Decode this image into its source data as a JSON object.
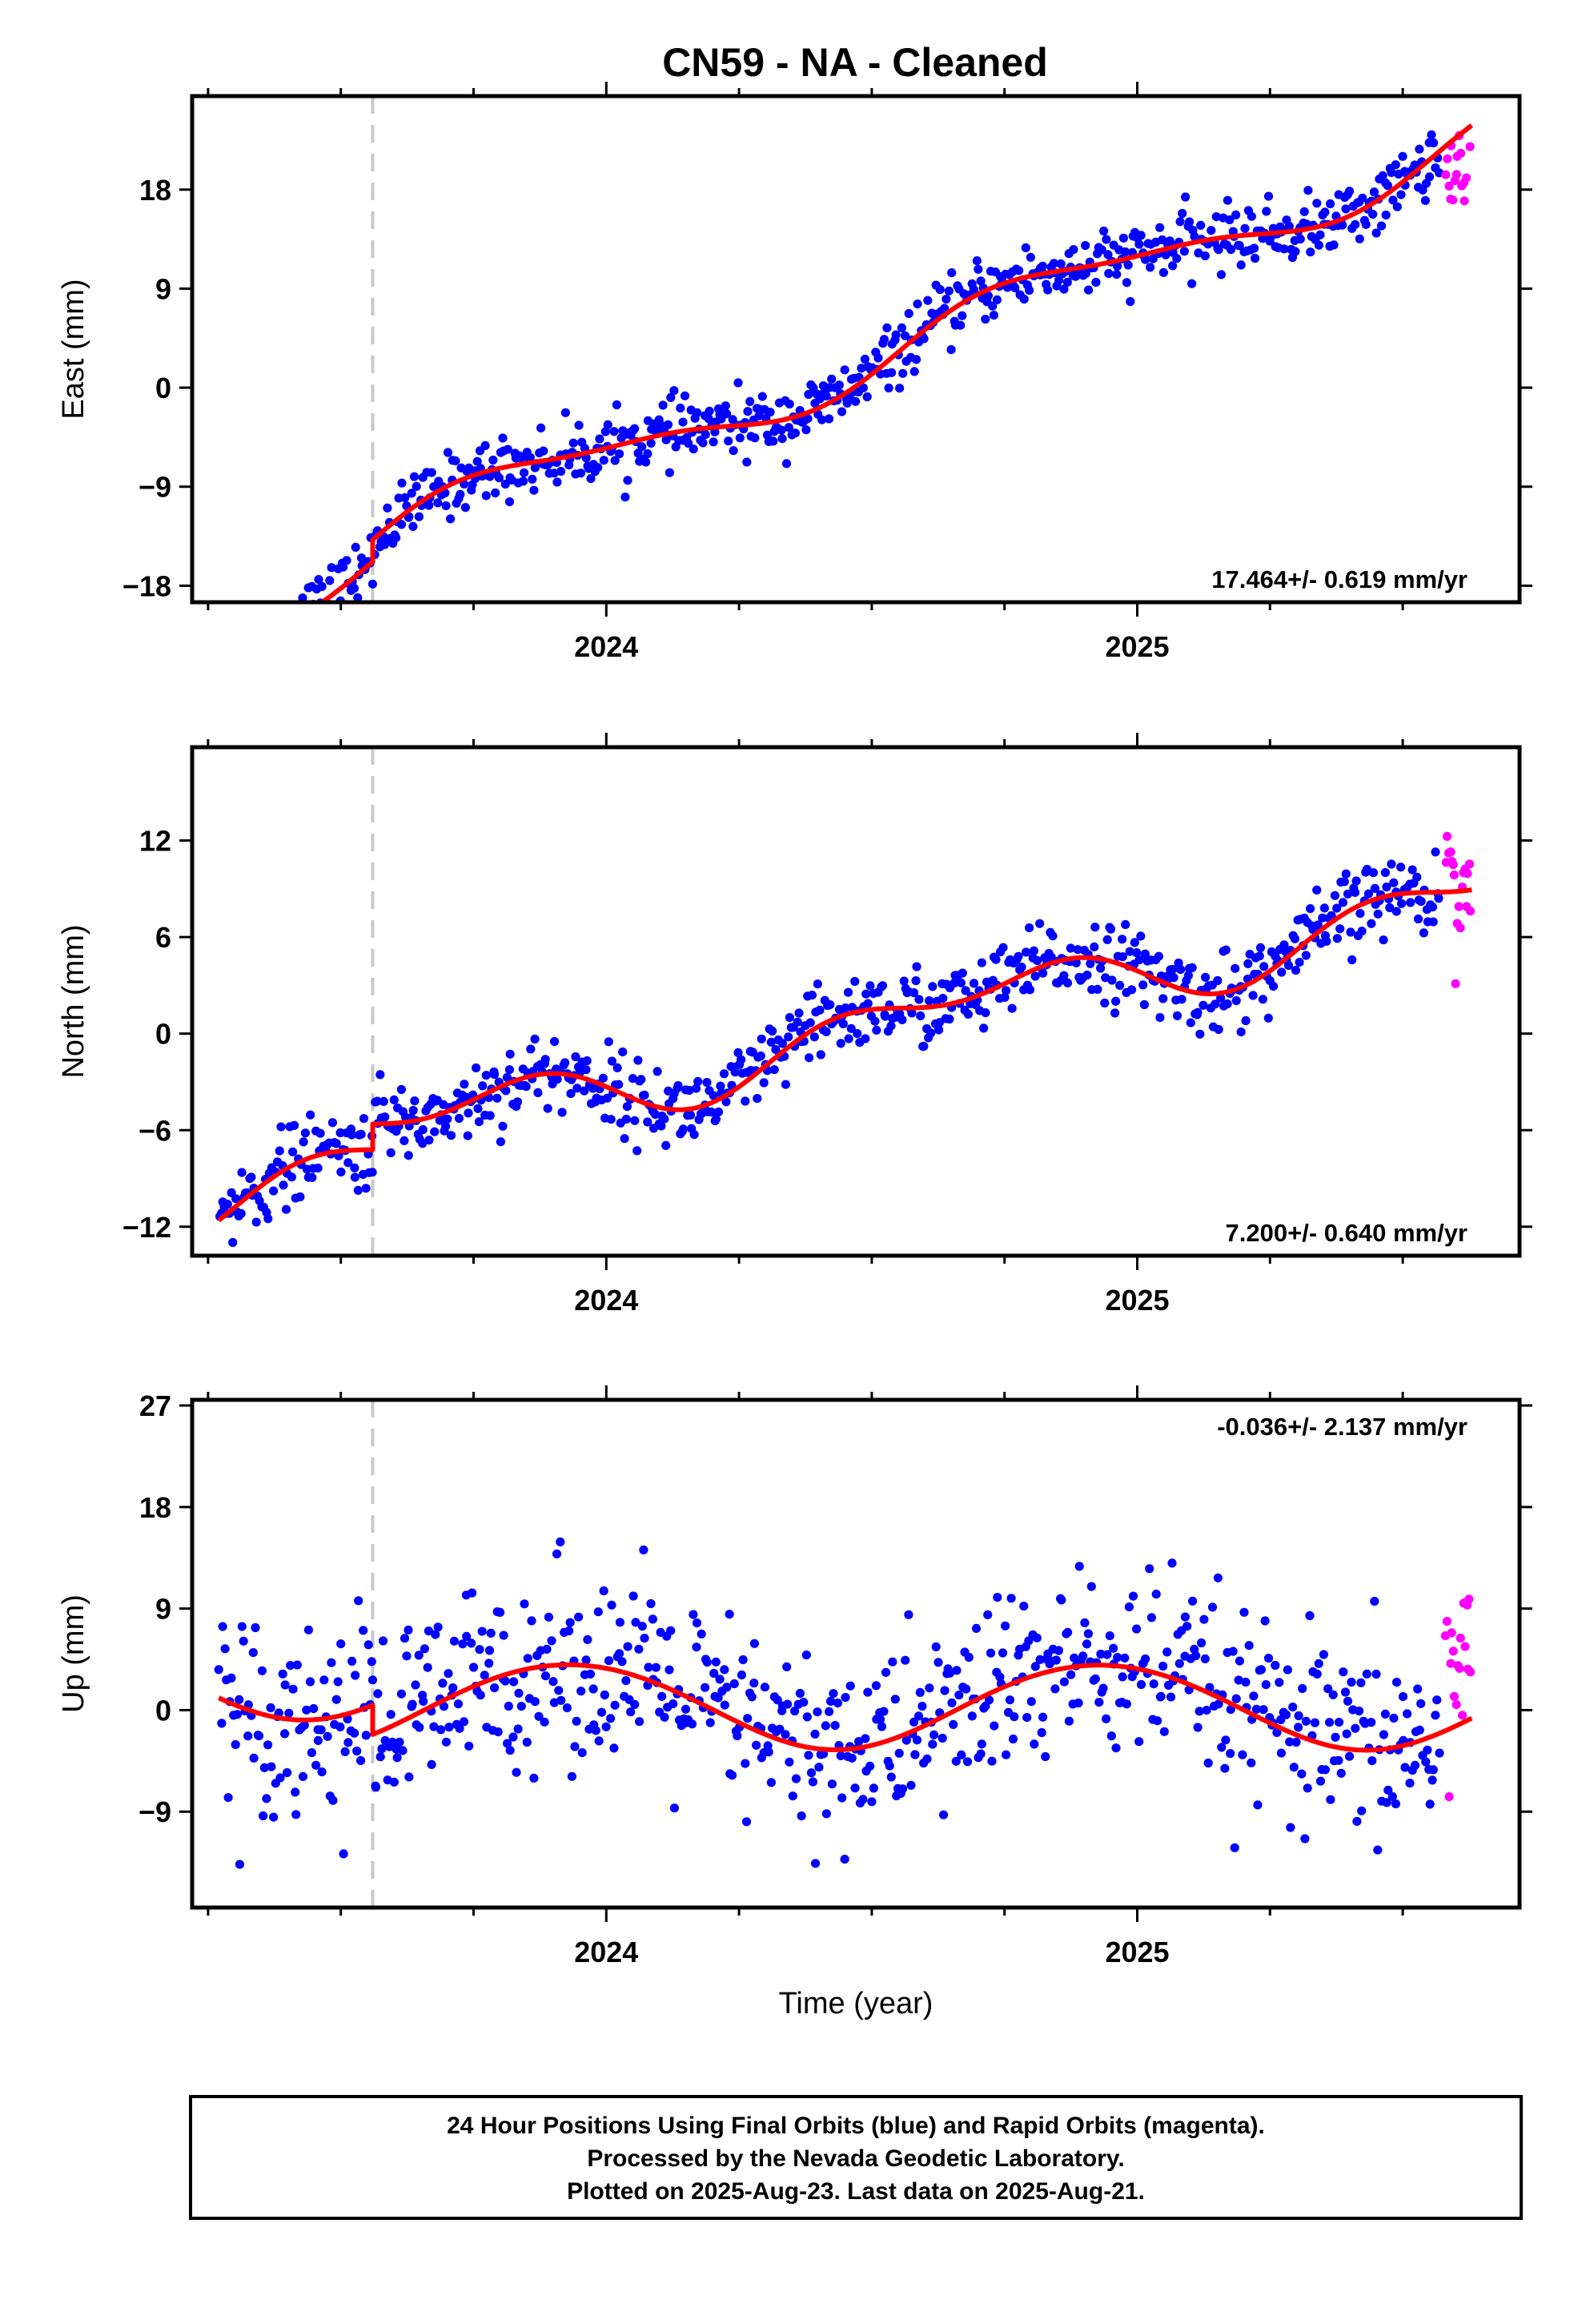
{
  "title": "CN59  - NA - Cleaned",
  "footer": [
    "24 Hour Positions Using Final Orbits (blue) and Rapid Orbits (magenta).",
    "Processed by the Nevada Geodetic Laboratory.",
    "Plotted on 2025-Aug-23. Last data on 2025-Aug-21."
  ],
  "colors": {
    "final": "#0000ff",
    "rapid": "#ff00ff",
    "model": "#ff0000",
    "event_line": "#c8c8c8"
  },
  "chart_data": [
    {
      "type": "scatter",
      "component": "east",
      "title": "CN59  - NA - Cleaned",
      "ylabel": "East (mm)",
      "xlabel": "",
      "xlim": [
        2023.22,
        2025.72
      ],
      "ylim": [
        -19.5,
        26.5
      ],
      "yticks": [
        -18,
        -9,
        0,
        9,
        18
      ],
      "ytick_labels": [
        "−18",
        "−9",
        "0",
        "9",
        "18"
      ],
      "xticks": [
        2024,
        2025
      ],
      "xtick_labels": [
        "2024",
        "2025"
      ],
      "rate": "17.464+/- 0.619 mm/yr",
      "rate_pos": "bottom-right",
      "event_lines": [
        2023.56
      ],
      "model": {
        "rate": 17.464,
        "intercept": -6.1,
        "ref_year": 2024.0,
        "offset_at": 2023.56,
        "offset": -2.0,
        "annual_sin": -2.1,
        "annual_cos": 1.0,
        "semi_sin": 0.6,
        "semi_cos": -0.4
      },
      "noise_final": 1.4,
      "noise_rapid": 3.0,
      "series": [
        {
          "name": "Final Orbits",
          "color": "#0000ff",
          "x_range": [
            2023.27,
            2025.57
          ],
          "count": 700
        },
        {
          "name": "Rapid Orbits",
          "color": "#ff00ff",
          "x_range": [
            2025.58,
            2025.63
          ],
          "count": 18,
          "y_shift": -3.5
        }
      ],
      "grid": false,
      "legend": "none"
    },
    {
      "type": "scatter",
      "component": "north",
      "title": "",
      "ylabel": "North (mm)",
      "xlabel": "",
      "xlim": [
        2023.22,
        2025.72
      ],
      "ylim": [
        -13.8,
        17.8
      ],
      "yticks": [
        -12,
        -6,
        0,
        6,
        12
      ],
      "ytick_labels": [
        "−12",
        "−6",
        "0",
        "6",
        "12"
      ],
      "xticks": [
        2024,
        2025
      ],
      "xtick_labels": [
        "2024",
        "2025"
      ],
      "rate": "7.200+/- 0.640 mm/yr",
      "rate_pos": "bottom-right",
      "event_lines": [
        2023.56
      ],
      "model": {
        "rate": 7.2,
        "intercept": -3.2,
        "ref_year": 2024.0,
        "offset_at": 2023.56,
        "offset": -1.6,
        "annual_sin": -1.4,
        "annual_cos": -0.6,
        "semi_sin": -1.0,
        "semi_cos": 0.5
      },
      "noise_final": 1.2,
      "noise_rapid": 2.2,
      "series": [
        {
          "name": "Final Orbits",
          "color": "#0000ff",
          "x_range": [
            2023.27,
            2025.57
          ],
          "count": 700
        },
        {
          "name": "Rapid Orbits",
          "color": "#ff00ff",
          "x_range": [
            2025.58,
            2025.63
          ],
          "count": 18,
          "y_shift": 0.5
        }
      ],
      "grid": false,
      "legend": "none"
    },
    {
      "type": "scatter",
      "component": "up",
      "title": "",
      "ylabel": "Up (mm)",
      "xlabel": "Time (year)",
      "xlim": [
        2023.22,
        2025.72
      ],
      "ylim": [
        -17.5,
        27.5
      ],
      "yticks": [
        -9,
        0,
        9,
        18,
        27
      ],
      "ytick_labels": [
        "−9",
        "0",
        "9",
        "18",
        "27"
      ],
      "xticks": [
        2024,
        2025
      ],
      "xtick_labels": [
        "2024",
        "2025"
      ],
      "rate": "-0.036+/- 2.137 mm/yr",
      "rate_pos": "top-right",
      "event_lines": [
        2023.56
      ],
      "model": {
        "rate": -0.036,
        "intercept": 0.4,
        "ref_year": 2024.0,
        "offset_at": 2023.56,
        "offset": 2.6,
        "annual_sin": -1.6,
        "annual_cos": 3.4,
        "semi_sin": 0.1,
        "semi_cos": -0.1
      },
      "noise_final": 4.2,
      "noise_rapid": 6.5,
      "series": [
        {
          "name": "Final Orbits",
          "color": "#0000ff",
          "x_range": [
            2023.27,
            2025.57
          ],
          "count": 700
        },
        {
          "name": "Rapid Orbits",
          "color": "#ff00ff",
          "x_range": [
            2025.58,
            2025.63
          ],
          "count": 18,
          "y_shift": 5.0
        }
      ],
      "grid": false,
      "legend": "none"
    }
  ]
}
